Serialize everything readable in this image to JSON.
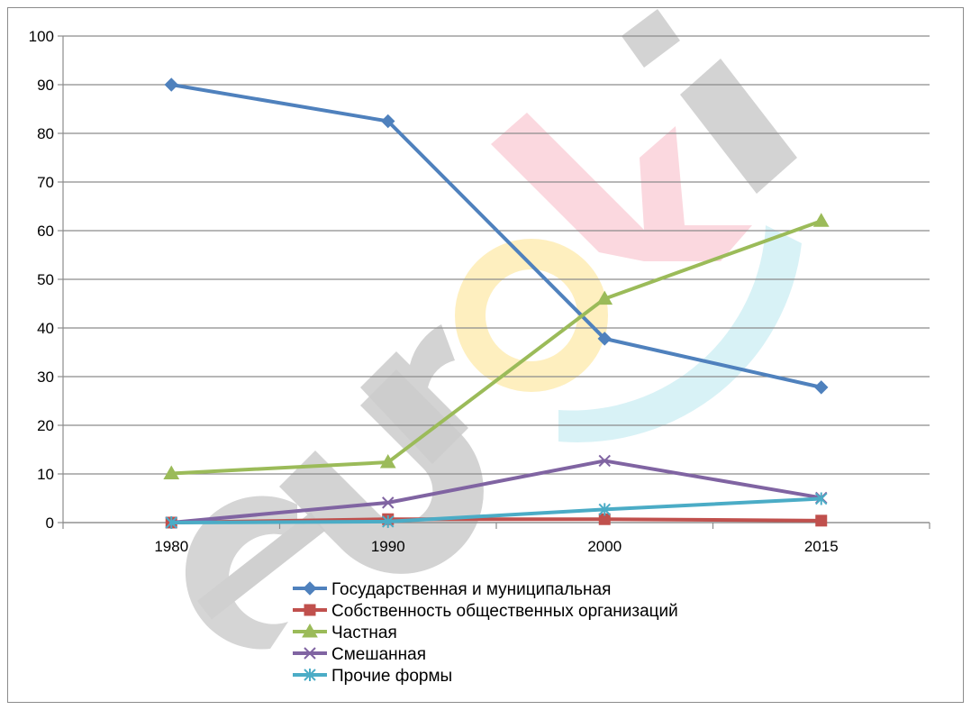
{
  "chart_data": {
    "type": "line",
    "categories": [
      "1980",
      "1990",
      "2000",
      "2015"
    ],
    "ylim": [
      0,
      100
    ],
    "yticks": [
      "0",
      "10",
      "20",
      "30",
      "40",
      "50",
      "60",
      "70",
      "80",
      "90",
      "100"
    ],
    "grid": "horizontal",
    "legend_position": "bottom",
    "series": [
      {
        "name": "Государственная и муниципальная",
        "values": [
          90,
          82.5,
          37.8,
          27.8
        ],
        "color": "#4f81bd",
        "marker": "diamond"
      },
      {
        "name": "Собственность общественных организаций",
        "values": [
          0,
          0.7,
          0.7,
          0.4
        ],
        "color": "#c0504d",
        "marker": "square"
      },
      {
        "name": "Частная",
        "values": [
          10.1,
          12.4,
          46,
          62
        ],
        "color": "#9bbb59",
        "marker": "triangle"
      },
      {
        "name": "Смешанная",
        "values": [
          0,
          4.1,
          12.7,
          5.1
        ],
        "color": "#8064a2",
        "marker": "x"
      },
      {
        "name": "Прочие формы",
        "values": [
          0,
          0.2,
          2.7,
          4.9
        ],
        "color": "#4bacc6",
        "marker": "star"
      }
    ]
  },
  "watermark": {
    "text": "euroki"
  }
}
